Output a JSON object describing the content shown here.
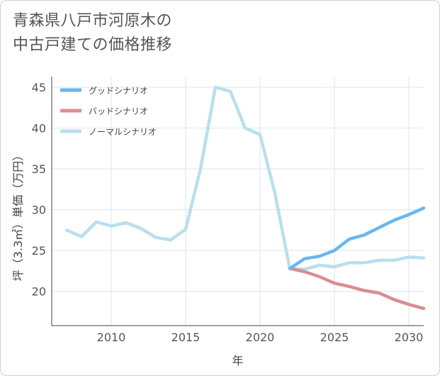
{
  "title_lines": [
    "青森県八戸市河原木の",
    "中古戸建ての価格推移"
  ],
  "chart_data": {
    "type": "line",
    "title": "青森県八戸市河原木の中古戸建ての価格推移",
    "xlabel": "年",
    "ylabel": "坪（3.3㎡）単価（万円）",
    "xlim": [
      2006,
      2031
    ],
    "ylim": [
      15.8,
      46.3
    ],
    "xticks": [
      2010,
      2015,
      2020,
      2025,
      2030
    ],
    "yticks": [
      20,
      25,
      30,
      35,
      40,
      45
    ],
    "grid": true,
    "legend_position": "top-left",
    "series": [
      {
        "name": "グッドシナリオ",
        "color": "#6ab7ee",
        "x": [
          2022,
          2023,
          2024,
          2025,
          2026,
          2027,
          2028,
          2029,
          2030,
          2031
        ],
        "y": [
          22.8,
          24.0,
          24.3,
          25.0,
          26.4,
          26.9,
          27.8,
          28.7,
          29.4,
          30.2
        ]
      },
      {
        "name": "バッドシナリオ",
        "color": "#db8c93",
        "x": [
          2022,
          2023,
          2024,
          2025,
          2026,
          2027,
          2028,
          2029,
          2030,
          2031
        ],
        "y": [
          22.8,
          22.4,
          21.8,
          21.0,
          20.6,
          20.1,
          19.8,
          19.0,
          18.4,
          17.9
        ]
      },
      {
        "name": "ノーマルシナリオ",
        "color": "#b9dfee",
        "x": [
          2007,
          2008,
          2009,
          2010,
          2011,
          2012,
          2013,
          2014,
          2015,
          2016,
          2017,
          2018,
          2019,
          2020,
          2021,
          2022,
          2023,
          2024,
          2025,
          2026,
          2027,
          2028,
          2029,
          2030,
          2031
        ],
        "y": [
          27.5,
          26.7,
          28.5,
          28.0,
          28.4,
          27.7,
          26.6,
          26.3,
          27.6,
          35.0,
          45.0,
          44.5,
          40.0,
          39.2,
          32.0,
          22.8,
          22.7,
          23.2,
          23.0,
          23.5,
          23.5,
          23.8,
          23.8,
          24.2,
          24.1
        ]
      }
    ]
  }
}
